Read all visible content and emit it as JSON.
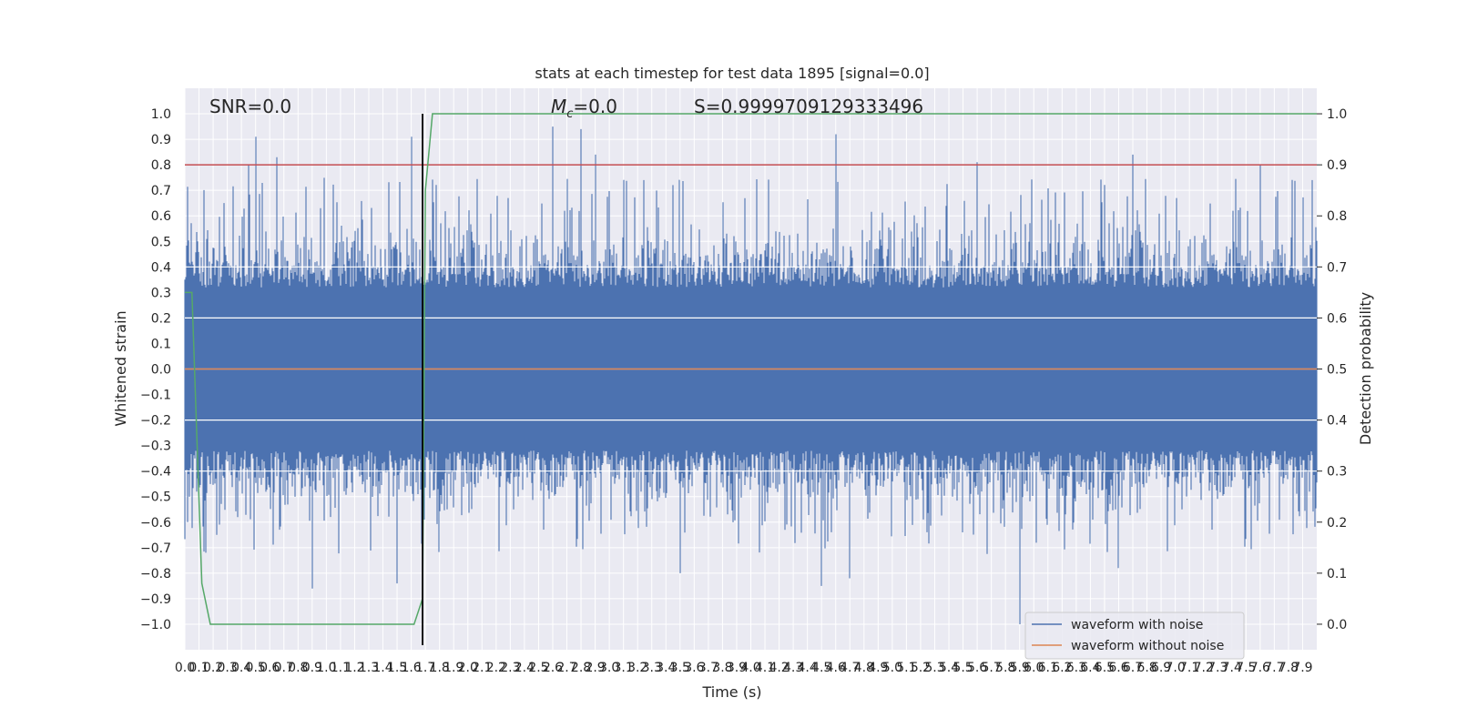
{
  "chart_data": {
    "type": "line",
    "title": "stats at each timestep for test data 1895 [signal=0.0]",
    "xlabel": "Time (s)",
    "ylabel": "Whitened strain",
    "ylabel_right": "Detection probability",
    "xlim": [
      0.0,
      8.0
    ],
    "ylim": [
      -1.1,
      1.1
    ],
    "ylim_right": [
      -0.05,
      1.05
    ],
    "x_ticks": [
      "0.0",
      "0.1",
      "0.2",
      "0.3",
      "0.4",
      "0.5",
      "0.6",
      "0.7",
      "0.8",
      "0.9",
      "1.0",
      "1.1",
      "1.2",
      "1.3",
      "1.4",
      "1.5",
      "1.6",
      "1.7",
      "1.8",
      "1.9",
      "2.0",
      "2.1",
      "2.2",
      "2.3",
      "2.4",
      "2.5",
      "2.6",
      "2.7",
      "2.8",
      "2.9",
      "3.0",
      "3.1",
      "3.2",
      "3.3",
      "3.4",
      "3.5",
      "3.6",
      "3.7",
      "3.8",
      "3.9",
      "4.0",
      "4.1",
      "4.2",
      "4.3",
      "4.4",
      "4.5",
      "4.6",
      "4.7",
      "4.8",
      "4.9",
      "5.0",
      "5.1",
      "5.2",
      "5.3",
      "5.4",
      "5.5",
      "5.6",
      "5.7",
      "5.8",
      "5.9",
      "6.0",
      "6.1",
      "6.2",
      "6.3",
      "6.4",
      "6.5",
      "6.6",
      "6.7",
      "6.8",
      "6.9",
      "7.0",
      "7.1",
      "7.2",
      "7.3",
      "7.4",
      "7.5",
      "7.6",
      "7.7",
      "7.8",
      "7.9"
    ],
    "y_ticks_left": [
      "1.0",
      "0.9",
      "0.8",
      "0.7",
      "0.6",
      "0.5",
      "0.4",
      "0.3",
      "0.2",
      "0.1",
      "0.0",
      "−0.1",
      "−0.2",
      "−0.3",
      "−0.4",
      "−0.5",
      "−0.6",
      "−0.7",
      "−0.8",
      "−0.9",
      "−1.0"
    ],
    "y_ticks_right": [
      "1.0",
      "0.9",
      "0.8",
      "0.7",
      "0.6",
      "0.5",
      "0.4",
      "0.3",
      "0.2",
      "0.1",
      "0.0"
    ],
    "grid": true,
    "legend_placement": "lower-right",
    "series": [
      {
        "name": "waveform with noise",
        "color": "#4c72b0",
        "axis": "left",
        "description_of_shape": "dense noise filling roughly -0.4 to 0.45 with spikes up to about 0.95 and down to about -1.0",
        "envelope_upper_typical": 0.45,
        "envelope_lower_typical": -0.45,
        "notable_peaks": [
          {
            "x": 0.45,
            "y": 0.8
          },
          {
            "x": 0.5,
            "y": 0.91
          },
          {
            "x": 0.65,
            "y": 0.83
          },
          {
            "x": 1.6,
            "y": 0.91
          },
          {
            "x": 2.6,
            "y": 0.95
          },
          {
            "x": 2.8,
            "y": 0.94
          },
          {
            "x": 2.9,
            "y": 0.84
          },
          {
            "x": 4.6,
            "y": 0.92
          },
          {
            "x": 5.6,
            "y": 0.81
          },
          {
            "x": 6.7,
            "y": 0.84
          },
          {
            "x": 7.6,
            "y": 0.8
          }
        ],
        "notable_troughs": [
          {
            "x": 0.15,
            "y": -0.72
          },
          {
            "x": 0.9,
            "y": -0.86
          },
          {
            "x": 1.5,
            "y": -0.84
          },
          {
            "x": 3.5,
            "y": -0.8
          },
          {
            "x": 4.5,
            "y": -0.85
          },
          {
            "x": 4.7,
            "y": -0.82
          },
          {
            "x": 5.9,
            "y": -1.0
          },
          {
            "x": 6.6,
            "y": -0.78
          }
        ]
      },
      {
        "name": "waveform without noise",
        "color": "#dd8452",
        "axis": "left",
        "x": [
          0.0,
          8.0
        ],
        "y": [
          0.0,
          0.0
        ]
      },
      {
        "color": "#55a868",
        "axis": "right",
        "x": [
          0.0,
          0.05,
          0.12,
          0.18,
          1.62,
          1.68,
          1.7,
          1.75,
          8.0
        ],
        "y": [
          0.65,
          0.65,
          0.08,
          0.0,
          0.0,
          0.05,
          0.85,
          1.0,
          1.0
        ]
      }
    ],
    "threshold_line": {
      "axis": "right",
      "y": 0.9,
      "color": "#c44e52"
    },
    "marker_line": {
      "x": 1.68,
      "color": "#000000"
    },
    "annotations": {
      "snr": "SNR=0.0",
      "mc_symbol": "M",
      "mc_subscript": "c",
      "mc_value": "=0.0",
      "s_value": "S=0.9999709129333496"
    }
  }
}
